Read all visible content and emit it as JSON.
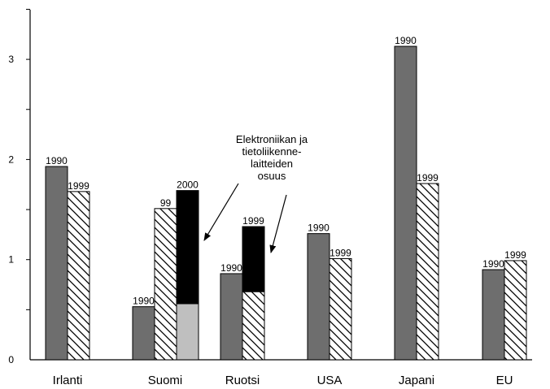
{
  "chart_data": {
    "type": "bar",
    "ylim": [
      0,
      3.5
    ],
    "yticks": [
      {
        "value": 0,
        "label": "0"
      },
      {
        "value": 1,
        "label": "1"
      },
      {
        "value": 2,
        "label": "2"
      },
      {
        "value": 3,
        "label": "3"
      }
    ],
    "categories": [
      "Irlanti",
      "Suomi",
      "Ruotsi",
      "USA",
      "Japani",
      "EU"
    ],
    "bars": [
      {
        "category": "Irlanti",
        "label": "1990",
        "value": 1.93,
        "style": "solid"
      },
      {
        "category": "Irlanti",
        "label": "1999",
        "value": 1.68,
        "style": "hatched"
      },
      {
        "category": "Suomi",
        "label": "1990",
        "value": 0.53,
        "style": "solid"
      },
      {
        "category": "Suomi",
        "label": "99",
        "value": 1.51,
        "style": "hatched"
      },
      {
        "category": "Suomi",
        "label": "2000",
        "value": 1.69,
        "style": "stacked",
        "segments": [
          0.56,
          1.13
        ]
      },
      {
        "category": "Ruotsi",
        "label": "1990",
        "value": 0.86,
        "style": "solid"
      },
      {
        "category": "Ruotsi",
        "label": "1999",
        "value": 1.33,
        "style": "hatched-stacked",
        "segments": [
          0.68,
          0.65
        ]
      },
      {
        "category": "USA",
        "label": "1990",
        "value": 1.26,
        "style": "solid"
      },
      {
        "category": "USA",
        "label": "1999",
        "value": 1.01,
        "style": "hatched"
      },
      {
        "category": "Japani",
        "label": "1990",
        "value": 3.13,
        "style": "solid"
      },
      {
        "category": "Japani",
        "label": "1999",
        "value": 1.76,
        "style": "hatched"
      },
      {
        "category": "EU",
        "label": "1990",
        "value": 0.9,
        "style": "solid"
      },
      {
        "category": "EU",
        "label": "1999",
        "value": 0.99,
        "style": "hatched"
      }
    ],
    "annotation": {
      "lines": [
        "Elektroniikan ja",
        "tietoliikenne-",
        "laitteiden",
        "osuus"
      ]
    },
    "colors": {
      "solid": "#6e6e6e",
      "dark": "#000000",
      "light": "#bfbfbf",
      "hatch": "#000000",
      "axis": "#000000"
    }
  }
}
